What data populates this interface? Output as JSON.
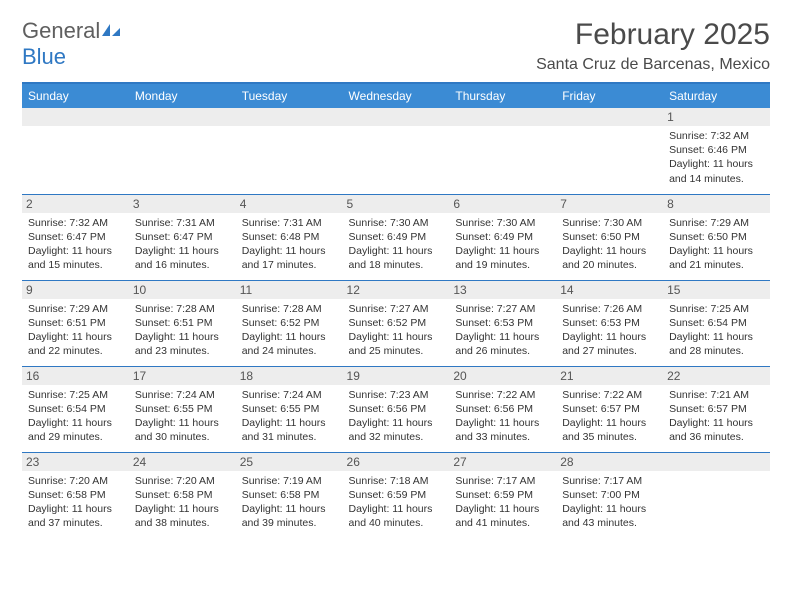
{
  "brand": {
    "word1": "General",
    "word2": "Blue"
  },
  "title": "February 2025",
  "location": "Santa Cruz de Barcenas, Mexico",
  "colors": {
    "header_bg": "#3b8bd4",
    "header_border": "#2f78c3",
    "daynum_bg": "#ededed",
    "text": "#333333",
    "brand_gray": "#5f5f5f",
    "brand_blue": "#2f78c3"
  },
  "day_headers": [
    "Sunday",
    "Monday",
    "Tuesday",
    "Wednesday",
    "Thursday",
    "Friday",
    "Saturday"
  ],
  "weeks": [
    [
      {
        "n": "",
        "sr": "",
        "ss": "",
        "dl": ""
      },
      {
        "n": "",
        "sr": "",
        "ss": "",
        "dl": ""
      },
      {
        "n": "",
        "sr": "",
        "ss": "",
        "dl": ""
      },
      {
        "n": "",
        "sr": "",
        "ss": "",
        "dl": ""
      },
      {
        "n": "",
        "sr": "",
        "ss": "",
        "dl": ""
      },
      {
        "n": "",
        "sr": "",
        "ss": "",
        "dl": ""
      },
      {
        "n": "1",
        "sr": "Sunrise: 7:32 AM",
        "ss": "Sunset: 6:46 PM",
        "dl": "Daylight: 11 hours and 14 minutes."
      }
    ],
    [
      {
        "n": "2",
        "sr": "Sunrise: 7:32 AM",
        "ss": "Sunset: 6:47 PM",
        "dl": "Daylight: 11 hours and 15 minutes."
      },
      {
        "n": "3",
        "sr": "Sunrise: 7:31 AM",
        "ss": "Sunset: 6:47 PM",
        "dl": "Daylight: 11 hours and 16 minutes."
      },
      {
        "n": "4",
        "sr": "Sunrise: 7:31 AM",
        "ss": "Sunset: 6:48 PM",
        "dl": "Daylight: 11 hours and 17 minutes."
      },
      {
        "n": "5",
        "sr": "Sunrise: 7:30 AM",
        "ss": "Sunset: 6:49 PM",
        "dl": "Daylight: 11 hours and 18 minutes."
      },
      {
        "n": "6",
        "sr": "Sunrise: 7:30 AM",
        "ss": "Sunset: 6:49 PM",
        "dl": "Daylight: 11 hours and 19 minutes."
      },
      {
        "n": "7",
        "sr": "Sunrise: 7:30 AM",
        "ss": "Sunset: 6:50 PM",
        "dl": "Daylight: 11 hours and 20 minutes."
      },
      {
        "n": "8",
        "sr": "Sunrise: 7:29 AM",
        "ss": "Sunset: 6:50 PM",
        "dl": "Daylight: 11 hours and 21 minutes."
      }
    ],
    [
      {
        "n": "9",
        "sr": "Sunrise: 7:29 AM",
        "ss": "Sunset: 6:51 PM",
        "dl": "Daylight: 11 hours and 22 minutes."
      },
      {
        "n": "10",
        "sr": "Sunrise: 7:28 AM",
        "ss": "Sunset: 6:51 PM",
        "dl": "Daylight: 11 hours and 23 minutes."
      },
      {
        "n": "11",
        "sr": "Sunrise: 7:28 AM",
        "ss": "Sunset: 6:52 PM",
        "dl": "Daylight: 11 hours and 24 minutes."
      },
      {
        "n": "12",
        "sr": "Sunrise: 7:27 AM",
        "ss": "Sunset: 6:52 PM",
        "dl": "Daylight: 11 hours and 25 minutes."
      },
      {
        "n": "13",
        "sr": "Sunrise: 7:27 AM",
        "ss": "Sunset: 6:53 PM",
        "dl": "Daylight: 11 hours and 26 minutes."
      },
      {
        "n": "14",
        "sr": "Sunrise: 7:26 AM",
        "ss": "Sunset: 6:53 PM",
        "dl": "Daylight: 11 hours and 27 minutes."
      },
      {
        "n": "15",
        "sr": "Sunrise: 7:25 AM",
        "ss": "Sunset: 6:54 PM",
        "dl": "Daylight: 11 hours and 28 minutes."
      }
    ],
    [
      {
        "n": "16",
        "sr": "Sunrise: 7:25 AM",
        "ss": "Sunset: 6:54 PM",
        "dl": "Daylight: 11 hours and 29 minutes."
      },
      {
        "n": "17",
        "sr": "Sunrise: 7:24 AM",
        "ss": "Sunset: 6:55 PM",
        "dl": "Daylight: 11 hours and 30 minutes."
      },
      {
        "n": "18",
        "sr": "Sunrise: 7:24 AM",
        "ss": "Sunset: 6:55 PM",
        "dl": "Daylight: 11 hours and 31 minutes."
      },
      {
        "n": "19",
        "sr": "Sunrise: 7:23 AM",
        "ss": "Sunset: 6:56 PM",
        "dl": "Daylight: 11 hours and 32 minutes."
      },
      {
        "n": "20",
        "sr": "Sunrise: 7:22 AM",
        "ss": "Sunset: 6:56 PM",
        "dl": "Daylight: 11 hours and 33 minutes."
      },
      {
        "n": "21",
        "sr": "Sunrise: 7:22 AM",
        "ss": "Sunset: 6:57 PM",
        "dl": "Daylight: 11 hours and 35 minutes."
      },
      {
        "n": "22",
        "sr": "Sunrise: 7:21 AM",
        "ss": "Sunset: 6:57 PM",
        "dl": "Daylight: 11 hours and 36 minutes."
      }
    ],
    [
      {
        "n": "23",
        "sr": "Sunrise: 7:20 AM",
        "ss": "Sunset: 6:58 PM",
        "dl": "Daylight: 11 hours and 37 minutes."
      },
      {
        "n": "24",
        "sr": "Sunrise: 7:20 AM",
        "ss": "Sunset: 6:58 PM",
        "dl": "Daylight: 11 hours and 38 minutes."
      },
      {
        "n": "25",
        "sr": "Sunrise: 7:19 AM",
        "ss": "Sunset: 6:58 PM",
        "dl": "Daylight: 11 hours and 39 minutes."
      },
      {
        "n": "26",
        "sr": "Sunrise: 7:18 AM",
        "ss": "Sunset: 6:59 PM",
        "dl": "Daylight: 11 hours and 40 minutes."
      },
      {
        "n": "27",
        "sr": "Sunrise: 7:17 AM",
        "ss": "Sunset: 6:59 PM",
        "dl": "Daylight: 11 hours and 41 minutes."
      },
      {
        "n": "28",
        "sr": "Sunrise: 7:17 AM",
        "ss": "Sunset: 7:00 PM",
        "dl": "Daylight: 11 hours and 43 minutes."
      },
      {
        "n": "",
        "sr": "",
        "ss": "",
        "dl": ""
      }
    ]
  ]
}
